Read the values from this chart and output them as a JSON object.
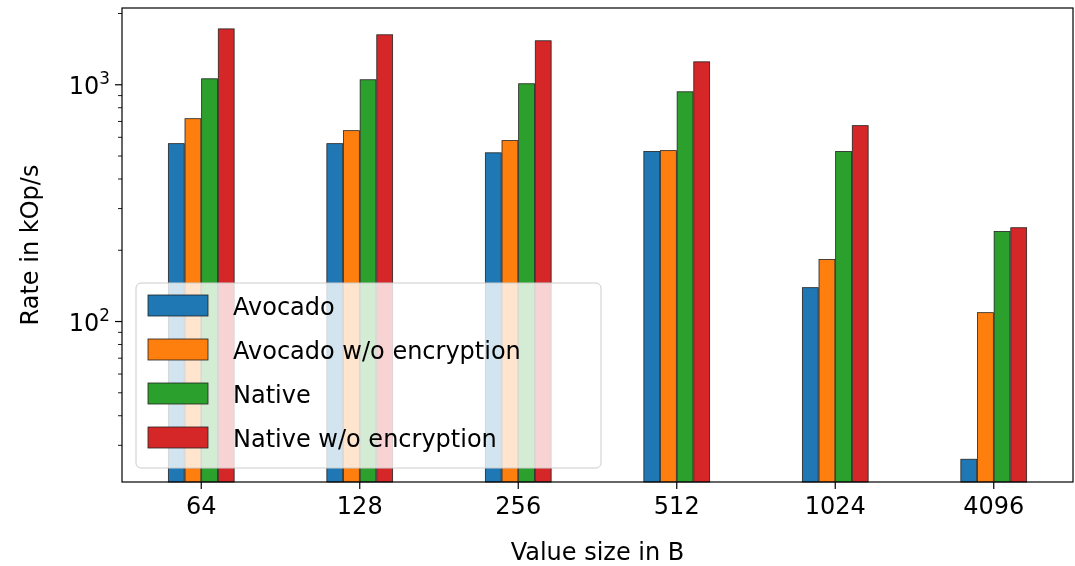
{
  "chart_data": {
    "type": "bar",
    "xlabel": "Value size in B",
    "ylabel": "Rate in kOp/s",
    "categories": [
      "64",
      "128",
      "256",
      "512",
      "1024",
      "4096"
    ],
    "series": [
      {
        "name": "Avocado",
        "color": "#1f77b4",
        "values": [
          564,
          564,
          516,
          523,
          139,
          26.2
        ]
      },
      {
        "name": "Avocado w/o encryption",
        "color": "#ff7f0e",
        "values": [
          719,
          640,
          581,
          527,
          183,
          109
        ]
      },
      {
        "name": "Native",
        "color": "#2ca02c",
        "values": [
          1060,
          1050,
          1010,
          934,
          523,
          240
        ]
      },
      {
        "name": "Native w/o encryption",
        "color": "#d62728",
        "values": [
          1722,
          1626,
          1534,
          1250,
          672,
          249
        ]
      }
    ],
    "log": "y",
    "ylim": [
      21,
      2110
    ],
    "yticks": [
      {
        "value": 30,
        "label": null
      },
      {
        "value": 40,
        "label": null
      },
      {
        "value": 50,
        "label": null
      },
      {
        "value": 60,
        "label": null
      },
      {
        "value": 70,
        "label": null
      },
      {
        "value": 80,
        "label": null
      },
      {
        "value": 90,
        "label": null
      },
      {
        "value": 100,
        "label": "10$^{2}$"
      },
      {
        "value": 200,
        "label": null
      },
      {
        "value": 300,
        "label": null
      },
      {
        "value": 400,
        "label": null
      },
      {
        "value": 500,
        "label": null
      },
      {
        "value": 600,
        "label": null
      },
      {
        "value": 700,
        "label": null
      },
      {
        "value": 800,
        "label": null
      },
      {
        "value": 900,
        "label": null
      },
      {
        "value": 1000,
        "label": "10$^{3}$"
      },
      {
        "value": 2000,
        "label": null
      }
    ],
    "legend": "bottom left",
    "grid": false
  }
}
